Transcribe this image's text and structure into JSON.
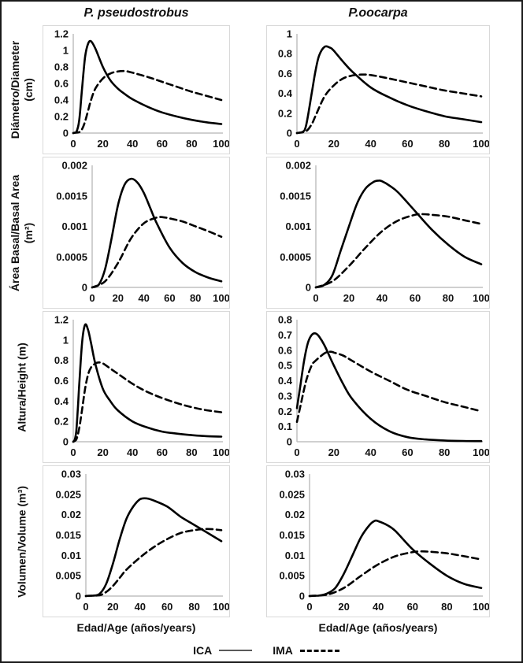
{
  "figure": {
    "column_titles": [
      "P. pseudostrobus",
      "P.oocarpa"
    ],
    "row_labels": [
      {
        "line1": "Diámetro/Diameter",
        "line2": "(cm)"
      },
      {
        "line1": "Área Basal/Basal Area",
        "line2": "(m²)"
      },
      {
        "line1": "Altura/Height (m)",
        "line2": ""
      },
      {
        "line1": "Volumen/Volume (m³)",
        "line2": ""
      }
    ],
    "x_axis_label": "Edad/Age (años/years)",
    "legend": {
      "ica_label": "ICA",
      "ima_label": "IMA"
    },
    "colors": {
      "curve": "#000000",
      "axis": "#c0c0c0",
      "panel_border": "#d9d9d9",
      "legend_solid_line": "#595959"
    }
  },
  "chart_data": [
    {
      "type": "line",
      "species": "P. pseudostrobus",
      "measure": "Diámetro/Diameter (cm)",
      "xlim": [
        0,
        100
      ],
      "xticks": [
        0,
        20,
        40,
        60,
        80,
        100
      ],
      "ylim": [
        0,
        1.2
      ],
      "yticks": [
        0,
        0.2,
        0.4,
        0.6,
        0.8,
        1,
        1.2
      ],
      "ytick_labels": [
        "0",
        "0.2",
        "0.4",
        "0.6",
        "0.8",
        "1",
        "1.2"
      ],
      "series": [
        {
          "name": "ICA",
          "style": "solid",
          "x": [
            0,
            2,
            4,
            6,
            8,
            10,
            12,
            15,
            20,
            25,
            30,
            35,
            40,
            50,
            60,
            70,
            80,
            90,
            100
          ],
          "y": [
            0,
            0.01,
            0.15,
            0.55,
            0.92,
            1.08,
            1.11,
            1.02,
            0.8,
            0.64,
            0.54,
            0.47,
            0.41,
            0.32,
            0.25,
            0.2,
            0.16,
            0.13,
            0.11
          ]
        },
        {
          "name": "IMA",
          "style": "dashed",
          "x": [
            0,
            4,
            6,
            8,
            10,
            12,
            15,
            20,
            25,
            30,
            35,
            40,
            50,
            60,
            70,
            80,
            90,
            100
          ],
          "y": [
            0,
            0.01,
            0.05,
            0.14,
            0.27,
            0.4,
            0.54,
            0.66,
            0.72,
            0.745,
            0.75,
            0.73,
            0.68,
            0.62,
            0.56,
            0.5,
            0.45,
            0.4
          ]
        }
      ]
    },
    {
      "type": "line",
      "species": "P.oocarpa",
      "measure": "Diámetro/Diameter (cm)",
      "xlim": [
        0,
        100
      ],
      "xticks": [
        0,
        20,
        40,
        60,
        80,
        100
      ],
      "ylim": [
        0,
        1
      ],
      "yticks": [
        0,
        0.2,
        0.4,
        0.6,
        0.8,
        1
      ],
      "ytick_labels": [
        "0",
        "0.2",
        "0.4",
        "0.6",
        "0.8",
        "1"
      ],
      "series": [
        {
          "name": "ICA",
          "style": "solid",
          "x": [
            0,
            3,
            5,
            8,
            10,
            12,
            15,
            18,
            20,
            25,
            30,
            40,
            50,
            60,
            70,
            80,
            90,
            100
          ],
          "y": [
            0,
            0.01,
            0.08,
            0.4,
            0.62,
            0.78,
            0.87,
            0.86,
            0.83,
            0.72,
            0.62,
            0.46,
            0.36,
            0.28,
            0.22,
            0.17,
            0.14,
            0.11
          ]
        },
        {
          "name": "IMA",
          "style": "dashed",
          "x": [
            0,
            5,
            8,
            10,
            15,
            20,
            25,
            30,
            35,
            40,
            50,
            60,
            70,
            80,
            90,
            100
          ],
          "y": [
            0,
            0.02,
            0.09,
            0.17,
            0.37,
            0.48,
            0.55,
            0.58,
            0.59,
            0.585,
            0.55,
            0.51,
            0.47,
            0.43,
            0.4,
            0.37
          ]
        }
      ]
    },
    {
      "type": "line",
      "species": "P. pseudostrobus",
      "measure": "Área Basal/Basal Area (m²)",
      "xlim": [
        0,
        100
      ],
      "xticks": [
        0,
        20,
        40,
        60,
        80,
        100
      ],
      "ylim": [
        0,
        0.002
      ],
      "yticks": [
        0,
        0.0005,
        0.001,
        0.0015,
        0.002
      ],
      "ytick_labels": [
        "0",
        "0.0005",
        "0.001",
        "0.0015",
        "0.002"
      ],
      "series": [
        {
          "name": "ICA",
          "style": "solid",
          "x": [
            0,
            5,
            10,
            15,
            20,
            25,
            30,
            35,
            40,
            45,
            50,
            60,
            70,
            80,
            90,
            100
          ],
          "y": [
            0,
            4e-05,
            0.0003,
            0.0008,
            0.00135,
            0.00168,
            0.00178,
            0.00172,
            0.00155,
            0.0013,
            0.00105,
            0.00065,
            0.0004,
            0.00025,
            0.00016,
            0.0001
          ]
        },
        {
          "name": "IMA",
          "style": "dashed",
          "x": [
            0,
            10,
            20,
            30,
            40,
            50,
            55,
            60,
            70,
            80,
            90,
            100
          ],
          "y": [
            0,
            0.0001,
            0.0004,
            0.0008,
            0.00105,
            0.001145,
            0.00115,
            0.00113,
            0.00108,
            0.001,
            0.00092,
            0.00083
          ]
        }
      ]
    },
    {
      "type": "line",
      "species": "P.oocarpa",
      "measure": "Área Basal/Basal Area (m²)",
      "xlim": [
        0,
        100
      ],
      "xticks": [
        0,
        20,
        40,
        60,
        80,
        100
      ],
      "ylim": [
        0,
        0.002
      ],
      "yticks": [
        0,
        0.0005,
        0.001,
        0.0015,
        0.002
      ],
      "ytick_labels": [
        "0",
        "0.0005",
        "0.001",
        "0.0015",
        "0.002"
      ],
      "series": [
        {
          "name": "ICA",
          "style": "solid",
          "x": [
            0,
            5,
            10,
            15,
            20,
            25,
            30,
            35,
            38,
            40,
            45,
            50,
            60,
            70,
            80,
            90,
            100
          ],
          "y": [
            0,
            4e-05,
            0.0002,
            0.0006,
            0.001,
            0.00138,
            0.00162,
            0.00173,
            0.00175,
            0.00174,
            0.00166,
            0.00155,
            0.00125,
            0.00095,
            0.0007,
            0.0005,
            0.00038
          ]
        },
        {
          "name": "IMA",
          "style": "dashed",
          "x": [
            0,
            10,
            20,
            30,
            40,
            50,
            60,
            65,
            70,
            80,
            90,
            100
          ],
          "y": [
            0,
            0.0001,
            0.00035,
            0.00065,
            0.00092,
            0.0011,
            0.00119,
            0.0012,
            0.00119,
            0.00116,
            0.0011,
            0.00104
          ]
        }
      ]
    },
    {
      "type": "line",
      "species": "P. pseudostrobus",
      "measure": "Altura/Height (m)",
      "xlim": [
        0,
        100
      ],
      "xticks": [
        0,
        20,
        40,
        60,
        80,
        100
      ],
      "ylim": [
        0,
        1.2
      ],
      "yticks": [
        0,
        0.2,
        0.4,
        0.6,
        0.8,
        1,
        1.2
      ],
      "ytick_labels": [
        "0",
        "0.2",
        "0.4",
        "0.6",
        "0.8",
        "1",
        "1.2"
      ],
      "series": [
        {
          "name": "ICA",
          "style": "solid",
          "x": [
            0,
            1,
            2,
            3,
            4,
            6,
            8,
            10,
            12,
            15,
            20,
            25,
            30,
            40,
            50,
            60,
            70,
            80,
            90,
            100
          ],
          "y": [
            0,
            0.02,
            0.1,
            0.3,
            0.55,
            0.98,
            1.15,
            1.1,
            0.97,
            0.76,
            0.52,
            0.4,
            0.31,
            0.2,
            0.14,
            0.1,
            0.08,
            0.065,
            0.055,
            0.05
          ]
        },
        {
          "name": "IMA",
          "style": "dashed",
          "x": [
            0,
            2,
            4,
            6,
            8,
            10,
            12,
            15,
            17,
            20,
            25,
            30,
            40,
            50,
            60,
            70,
            80,
            90,
            100
          ],
          "y": [
            0,
            0.02,
            0.13,
            0.32,
            0.52,
            0.66,
            0.73,
            0.77,
            0.78,
            0.77,
            0.72,
            0.67,
            0.57,
            0.49,
            0.43,
            0.38,
            0.34,
            0.31,
            0.29
          ]
        }
      ]
    },
    {
      "type": "line",
      "species": "P.oocarpa",
      "measure": "Altura/Height (m)",
      "xlim": [
        0,
        100
      ],
      "xticks": [
        0,
        20,
        40,
        60,
        80,
        100
      ],
      "ylim": [
        0,
        0.8
      ],
      "yticks": [
        0,
        0.1,
        0.2,
        0.3,
        0.4,
        0.5,
        0.6,
        0.7,
        0.8
      ],
      "ytick_labels": [
        "0",
        "0.1",
        "0.2",
        "0.3",
        "0.4",
        "0.5",
        "0.6",
        "0.7",
        "0.8"
      ],
      "series": [
        {
          "name": "ICA",
          "style": "solid",
          "x": [
            0,
            2,
            4,
            6,
            8,
            10,
            12,
            15,
            20,
            25,
            30,
            40,
            50,
            60,
            70,
            80,
            90,
            100
          ],
          "y": [
            0.22,
            0.38,
            0.54,
            0.65,
            0.7,
            0.71,
            0.69,
            0.63,
            0.5,
            0.38,
            0.28,
            0.15,
            0.07,
            0.03,
            0.015,
            0.008,
            0.005,
            0.004
          ]
        },
        {
          "name": "IMA",
          "style": "dashed",
          "x": [
            0,
            2,
            5,
            8,
            10,
            15,
            18,
            20,
            25,
            30,
            40,
            50,
            60,
            70,
            80,
            90,
            100
          ],
          "y": [
            0.13,
            0.24,
            0.4,
            0.5,
            0.53,
            0.58,
            0.59,
            0.585,
            0.565,
            0.53,
            0.46,
            0.4,
            0.34,
            0.3,
            0.26,
            0.23,
            0.2
          ]
        }
      ]
    },
    {
      "type": "line",
      "species": "P. pseudostrobus",
      "measure": "Volumen/Volume (m³)",
      "xlim": [
        0,
        100
      ],
      "xticks": [
        0,
        20,
        40,
        60,
        80,
        100
      ],
      "ylim": [
        0,
        0.03
      ],
      "yticks": [
        0,
        0.005,
        0.01,
        0.015,
        0.02,
        0.025,
        0.03
      ],
      "ytick_labels": [
        "0",
        "0.005",
        "0.01",
        "0.015",
        "0.02",
        "0.025",
        "0.03"
      ],
      "series": [
        {
          "name": "ICA",
          "style": "solid",
          "x": [
            0,
            5,
            10,
            15,
            20,
            25,
            30,
            35,
            40,
            45,
            50,
            60,
            70,
            80,
            90,
            100
          ],
          "y": [
            0,
            0.0001,
            0.0005,
            0.003,
            0.008,
            0.014,
            0.019,
            0.022,
            0.0238,
            0.024,
            0.0235,
            0.022,
            0.0195,
            0.0175,
            0.0155,
            0.0135
          ]
        },
        {
          "name": "IMA",
          "style": "dashed",
          "x": [
            0,
            10,
            15,
            20,
            25,
            30,
            40,
            50,
            60,
            70,
            80,
            90,
            100
          ],
          "y": [
            0,
            0.0002,
            0.001,
            0.0025,
            0.0045,
            0.0065,
            0.0095,
            0.012,
            0.014,
            0.0155,
            0.0162,
            0.0165,
            0.0162
          ]
        }
      ]
    },
    {
      "type": "line",
      "species": "P.oocarpa",
      "measure": "Volumen/Volume (m³)",
      "xlim": [
        0,
        100
      ],
      "xticks": [
        0,
        20,
        40,
        60,
        80,
        100
      ],
      "ylim": [
        0,
        0.03
      ],
      "yticks": [
        0,
        0.005,
        0.01,
        0.015,
        0.02,
        0.025,
        0.03
      ],
      "ytick_labels": [
        "0",
        "0.005",
        "0.01",
        "0.015",
        "0.02",
        "0.025",
        "0.03"
      ],
      "series": [
        {
          "name": "ICA",
          "style": "solid",
          "x": [
            0,
            5,
            10,
            15,
            20,
            25,
            30,
            35,
            38,
            40,
            45,
            50,
            60,
            70,
            80,
            90,
            100
          ],
          "y": [
            0,
            0.0001,
            0.0006,
            0.002,
            0.0055,
            0.01,
            0.0145,
            0.0175,
            0.0185,
            0.0184,
            0.0175,
            0.016,
            0.0115,
            0.008,
            0.005,
            0.003,
            0.002
          ]
        },
        {
          "name": "IMA",
          "style": "dashed",
          "x": [
            0,
            10,
            20,
            30,
            40,
            50,
            60,
            65,
            70,
            80,
            90,
            100
          ],
          "y": [
            0,
            0.0003,
            0.002,
            0.005,
            0.0078,
            0.0098,
            0.0108,
            0.011,
            0.0109,
            0.0105,
            0.0098,
            0.009
          ]
        }
      ]
    }
  ]
}
